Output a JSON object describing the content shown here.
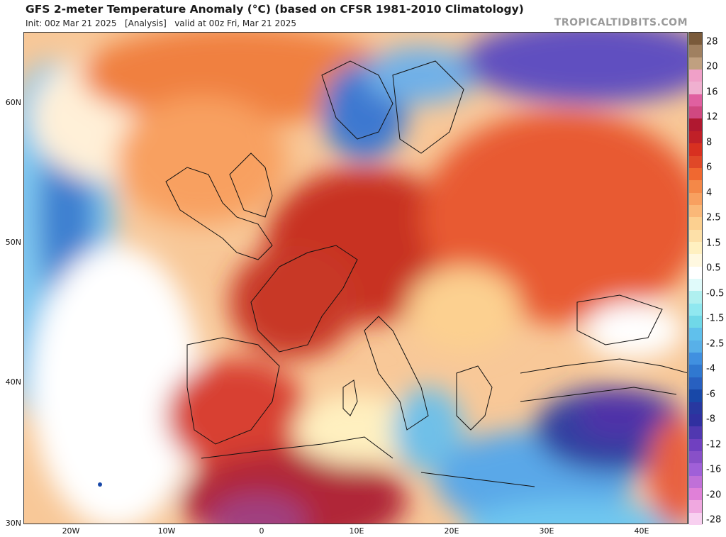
{
  "header": {
    "title": "GFS 2-meter Temperature Anomaly (°C) (based on CFSR 1981-2010 Climatology)",
    "subtitle": "Init: 00z Mar 21 2025   [Analysis]   valid at 00z Fri, Mar 21 2025",
    "credit": "TROPICALTIDBITS.COM"
  },
  "map": {
    "lat_labels": [
      "60N",
      "50N",
      "40N",
      "30N"
    ],
    "lon_labels": [
      "20W",
      "10W",
      "0",
      "10E",
      "20E",
      "30E",
      "40E"
    ],
    "lat_range": [
      30,
      65
    ],
    "lon_range": [
      -25,
      45
    ]
  },
  "colorbar": {
    "labels": [
      "28",
      "20",
      "16",
      "12",
      "8",
      "6",
      "4",
      "2.5",
      "1.5",
      "0.5",
      "-0.5",
      "-1.5",
      "-2.5",
      "-4",
      "-6",
      "-8",
      "-12",
      "-16",
      "-20",
      "-28"
    ],
    "colors": {
      "top": "#7a5a3a",
      "brown": "#a08060",
      "pink_light": "#f0a0c8",
      "pink": "#e060a0",
      "red_dark": "#b01830",
      "red": "#d83020",
      "orange_red": "#f06830",
      "orange": "#f8a060",
      "peach": "#fcd090",
      "cream": "#fff0c0",
      "white": "#ffffff",
      "cyan_light": "#b0f0f0",
      "cyan": "#70d8e8",
      "sky": "#58b0e8",
      "blue": "#3078d0",
      "blue_dark": "#1848a8",
      "indigo": "#3030a0",
      "purple": "#7040c0",
      "violet": "#a060d8",
      "magenta_light": "#e080d8"
    }
  }
}
